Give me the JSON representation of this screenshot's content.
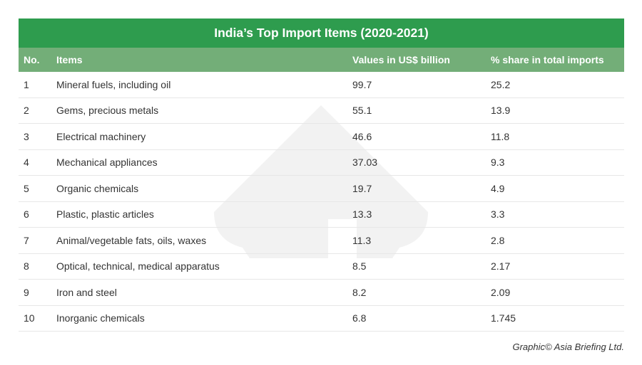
{
  "table": {
    "title": "India’s Top Import Items (2020-2021)",
    "columns": [
      "No.",
      "Items",
      "Values in US$ billion",
      "% share in total imports"
    ],
    "rows": [
      [
        "1",
        "Mineral fuels, including oil",
        "99.7",
        "25.2"
      ],
      [
        "2",
        "Gems, precious metals",
        "55.1",
        "13.9"
      ],
      [
        "3",
        "Electrical machinery",
        "46.6",
        "11.8"
      ],
      [
        "4",
        "Mechanical appliances",
        "37.03",
        "9.3"
      ],
      [
        "5",
        "Organic chemicals",
        "19.7",
        "4.9"
      ],
      [
        "6",
        "Plastic, plastic articles",
        "13.3",
        "3.3"
      ],
      [
        "7",
        "Animal/vegetable fats, oils, waxes",
        "11.3",
        "2.8"
      ],
      [
        "8",
        "Optical, technical, medical apparatus",
        "8.5",
        "2.17"
      ],
      [
        "9",
        "Iron and steel",
        "8.2",
        "2.09"
      ],
      [
        "10",
        "Inorganic chemicals",
        "6.8",
        "1.745"
      ]
    ]
  },
  "credit": "Graphic© Asia Briefing Ltd.",
  "colors": {
    "title_bg": "#2e9c4e",
    "header_bg": "#73ae78",
    "watermark": "#f2f2f2"
  },
  "chart_data": {
    "type": "table",
    "title": "India’s Top Import Items (2020-2021)",
    "columns": [
      "No.",
      "Items",
      "Values in US$ billion",
      "% share in total imports"
    ],
    "categories": [
      "Mineral fuels, including oil",
      "Gems, precious metals",
      "Electrical machinery",
      "Mechanical appliances",
      "Organic chemicals",
      "Plastic, plastic articles",
      "Animal/vegetable fats, oils, waxes",
      "Optical, technical, medical apparatus",
      "Iron and steel",
      "Inorganic chemicals"
    ],
    "series": [
      {
        "name": "Values in US$ billion",
        "values": [
          99.7,
          55.1,
          46.6,
          37.03,
          19.7,
          13.3,
          11.3,
          8.5,
          8.2,
          6.8
        ]
      },
      {
        "name": "% share in total imports",
        "values": [
          25.2,
          13.9,
          11.8,
          9.3,
          4.9,
          3.3,
          2.8,
          2.17,
          2.09,
          1.745
        ]
      }
    ]
  }
}
